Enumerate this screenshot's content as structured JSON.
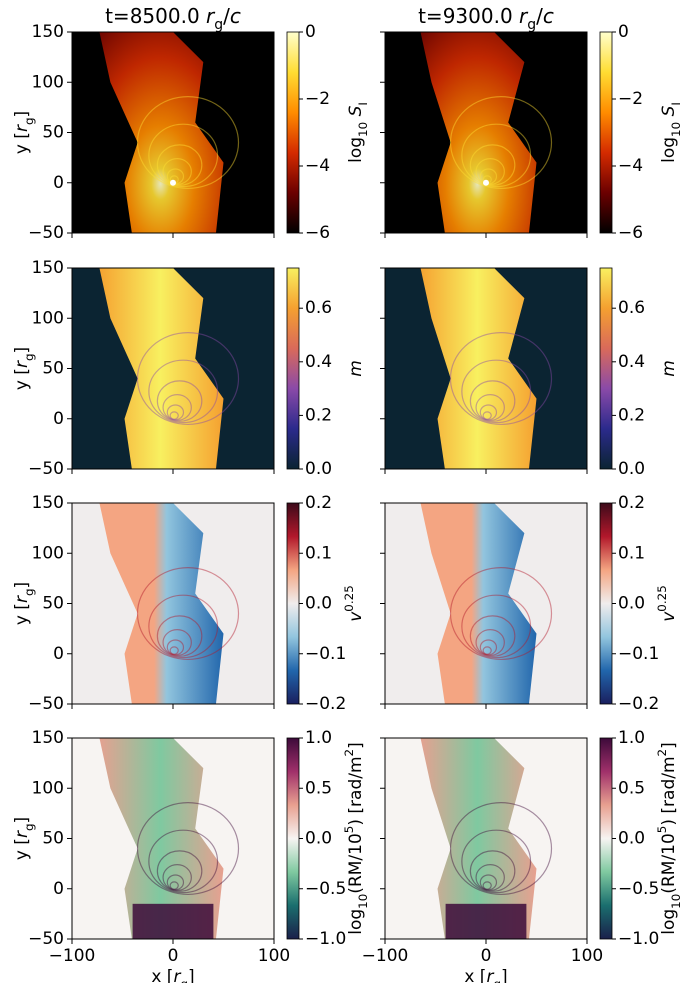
{
  "chart_data": [
    {
      "type": "heatmap",
      "title": [
        "t=8500.0 ",
        {
          "it": "r"
        },
        {
          "sub": "g"
        },
        "/",
        {
          "it": "c"
        }
      ],
      "ylabel": [
        "y [",
        {
          "it": "r"
        },
        {
          "sub": "g"
        },
        "]"
      ],
      "xlim": [
        -100,
        100
      ],
      "ylim": [
        -50,
        150
      ],
      "xticks": [
        -100,
        0,
        100
      ],
      "yticks": [
        {
          "value": -50,
          "label": "−50"
        },
        0,
        50,
        100,
        150
      ],
      "show_xtick_labels": false,
      "show_ytick_labels": true,
      "colorbar": {
        "label": [
          "log",
          {
            "sub": "10"
          },
          " ",
          {
            "it": "S"
          },
          {
            "sub": "I"
          }
        ],
        "lim": [
          -6,
          0
        ],
        "ticks": [
          {
            "value": -6,
            "label": "−6"
          },
          {
            "value": -4,
            "label": "−4"
          },
          {
            "value": -2,
            "label": "−2"
          },
          0
        ],
        "colormap": [
          "#000000",
          "#6b0000",
          "#d42b00",
          "#ff8c00",
          "#ffdd33",
          "#ffffcc"
        ]
      }
    },
    {
      "type": "heatmap",
      "title": [
        "t=9300.0 ",
        {
          "it": "r"
        },
        {
          "sub": "g"
        },
        "/",
        {
          "it": "c"
        }
      ],
      "xlim": [
        -100,
        100
      ],
      "ylim": [
        -50,
        150
      ],
      "xticks": [
        -100,
        0,
        100
      ],
      "yticks": [
        -50,
        0,
        50,
        100,
        150
      ],
      "show_xtick_labels": false,
      "show_ytick_labels": false,
      "colorbar": {
        "label": [
          "log",
          {
            "sub": "10"
          },
          " ",
          {
            "it": "S"
          },
          {
            "sub": "I"
          }
        ],
        "lim": [
          -6,
          0
        ],
        "ticks": [
          {
            "value": -6,
            "label": "−6"
          },
          {
            "value": -4,
            "label": "−4"
          },
          {
            "value": -2,
            "label": "−2"
          },
          0
        ],
        "colormap": [
          "#000000",
          "#6b0000",
          "#d42b00",
          "#ff8c00",
          "#ffdd33",
          "#ffffcc"
        ]
      }
    },
    {
      "type": "heatmap",
      "ylabel": [
        "y [",
        {
          "it": "r"
        },
        {
          "sub": "g"
        },
        "]"
      ],
      "xlim": [
        -100,
        100
      ],
      "ylim": [
        -50,
        150
      ],
      "xticks": [
        -100,
        0,
        100
      ],
      "yticks": [
        {
          "value": -50,
          "label": "−50"
        },
        0,
        50,
        100,
        150
      ],
      "show_xtick_labels": false,
      "show_ytick_labels": true,
      "colorbar": {
        "label": [
          {
            "it": "m"
          }
        ],
        "lim": [
          0,
          0.75
        ],
        "ticks": [
          {
            "value": 0,
            "label": "0.0"
          },
          0.2,
          0.4,
          0.6
        ],
        "colormap": [
          "#0b2432",
          "#2b2a8c",
          "#8a4aa8",
          "#d96a5a",
          "#f5a030",
          "#f8f060"
        ]
      }
    },
    {
      "type": "heatmap",
      "xlim": [
        -100,
        100
      ],
      "ylim": [
        -50,
        150
      ],
      "xticks": [
        -100,
        0,
        100
      ],
      "yticks": [
        -50,
        0,
        50,
        100,
        150
      ],
      "show_xtick_labels": false,
      "show_ytick_labels": false,
      "colorbar": {
        "label": [
          {
            "it": "m"
          }
        ],
        "lim": [
          0,
          0.75
        ],
        "ticks": [
          {
            "value": 0,
            "label": "0.0"
          },
          0.2,
          0.4,
          0.6
        ],
        "colormap": [
          "#0b2432",
          "#2b2a8c",
          "#8a4aa8",
          "#d96a5a",
          "#f5a030",
          "#f8f060"
        ]
      }
    },
    {
      "type": "heatmap",
      "ylabel": [
        "y [",
        {
          "it": "r"
        },
        {
          "sub": "g"
        },
        "]"
      ],
      "xlim": [
        -100,
        100
      ],
      "ylim": [
        -50,
        150
      ],
      "xticks": [
        -100,
        0,
        100
      ],
      "yticks": [
        {
          "value": -50,
          "label": "−50"
        },
        0,
        50,
        100,
        150
      ],
      "show_xtick_labels": false,
      "show_ytick_labels": true,
      "colorbar": {
        "label": [
          {
            "it": "v"
          },
          {
            "sup": "0.25"
          }
        ],
        "lim": [
          -0.2,
          0.2
        ],
        "ticks": [
          {
            "value": -0.2,
            "label": "−0.2"
          },
          {
            "value": -0.1,
            "label": "−0.1"
          },
          {
            "value": 0,
            "label": "0.0"
          },
          0.1,
          0.2
        ],
        "colormap": [
          "#1a1f5e",
          "#2166ac",
          "#92c5de",
          "#f0eded",
          "#f4a582",
          "#b2182b",
          "#3d0a1a"
        ]
      }
    },
    {
      "type": "heatmap",
      "xlim": [
        -100,
        100
      ],
      "ylim": [
        -50,
        150
      ],
      "xticks": [
        -100,
        0,
        100
      ],
      "yticks": [
        -50,
        0,
        50,
        100,
        150
      ],
      "show_xtick_labels": false,
      "show_ytick_labels": false,
      "colorbar": {
        "label": [
          {
            "it": "v"
          },
          {
            "sup": "0.25"
          }
        ],
        "lim": [
          -0.2,
          0.2
        ],
        "ticks": [
          {
            "value": -0.2,
            "label": "−0.2"
          },
          {
            "value": -0.1,
            "label": "−0.1"
          },
          {
            "value": 0,
            "label": "0.0"
          },
          0.1,
          0.2
        ],
        "colormap": [
          "#1a1f5e",
          "#2166ac",
          "#92c5de",
          "#f0eded",
          "#f4a582",
          "#b2182b",
          "#3d0a1a"
        ]
      }
    },
    {
      "type": "heatmap",
      "ylabel": [
        "y [",
        {
          "it": "r"
        },
        {
          "sub": "g"
        },
        "]"
      ],
      "xlabel": [
        "x [",
        {
          "it": "r"
        },
        {
          "sub": "g"
        },
        "]"
      ],
      "xlim": [
        -100,
        100
      ],
      "ylim": [
        -50,
        150
      ],
      "xticks": [
        {
          "value": -100,
          "label": "−100"
        },
        0,
        100
      ],
      "yticks": [
        {
          "value": -50,
          "label": "−50"
        },
        0,
        50,
        100,
        150
      ],
      "show_xtick_labels": true,
      "show_ytick_labels": true,
      "colorbar": {
        "label": [
          "log",
          {
            "sub": "10"
          },
          "(RM/10",
          {
            "sup": "5"
          },
          ") [rad/m",
          {
            "sup": "2"
          },
          "]"
        ],
        "lim": [
          -1,
          1
        ],
        "ticks": [
          {
            "value": -1,
            "label": "−1.0"
          },
          {
            "value": -0.5,
            "label": "−0.5"
          },
          {
            "value": 0,
            "label": "0.0"
          },
          0.5,
          {
            "value": 1,
            "label": "1.0"
          }
        ],
        "colormap": [
          "#1a1f4a",
          "#1a6e6e",
          "#7fc9a0",
          "#f7f4f2",
          "#e8a090",
          "#a0306a",
          "#3d0a3a"
        ]
      }
    },
    {
      "type": "heatmap",
      "xlabel": [
        "x [",
        {
          "it": "r"
        },
        {
          "sub": "g"
        },
        "]"
      ],
      "xlim": [
        -100,
        100
      ],
      "ylim": [
        -50,
        150
      ],
      "xticks": [
        {
          "value": -100,
          "label": "−100"
        },
        0,
        100
      ],
      "yticks": [
        -50,
        0,
        50,
        100,
        150
      ],
      "show_xtick_labels": true,
      "show_ytick_labels": false,
      "colorbar": {
        "label": [
          "log",
          {
            "sub": "10"
          },
          "(RM/10",
          {
            "sup": "5"
          },
          ") [rad/m",
          {
            "sup": "2"
          },
          "]"
        ],
        "lim": [
          -1,
          1
        ],
        "ticks": [
          {
            "value": -1,
            "label": "−1.0"
          },
          {
            "value": -0.5,
            "label": "−0.5"
          },
          {
            "value": 0,
            "label": "0.0"
          },
          0.5,
          {
            "value": 1,
            "label": "1.0"
          }
        ],
        "colormap": [
          "#1a1f4a",
          "#1a6e6e",
          "#7fc9a0",
          "#f7f4f2",
          "#e8a090",
          "#a0306a",
          "#3d0a3a"
        ]
      }
    }
  ]
}
